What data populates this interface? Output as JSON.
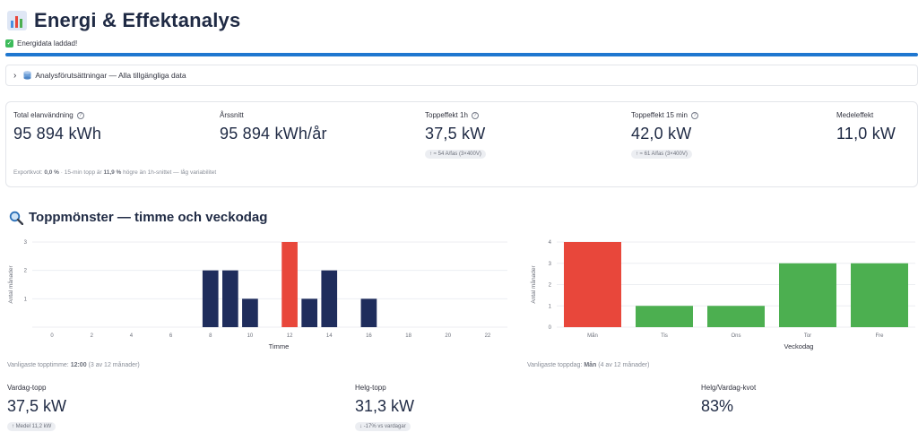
{
  "app": {
    "title": "Energi & Effektanalys",
    "icon": "bar-chart-icon"
  },
  "toast": {
    "text": "Energidata laddad!",
    "icon": "check-icon"
  },
  "progress": {
    "value": 1.0,
    "color": "#1f77d0"
  },
  "expander": {
    "label": "Analysförutsättningar — Alla tillgängliga data",
    "icon": "database-icon",
    "state": "collapsed"
  },
  "metrics": {
    "items": [
      {
        "label": "Total elanvändning",
        "value": "95 894 kWh",
        "help": true,
        "delta": ""
      },
      {
        "label": "Årssnitt",
        "value": "95 894 kWh/år",
        "help": false,
        "delta": ""
      },
      {
        "label": "Toppeffekt 1h",
        "value": "37,5 kW",
        "help": true,
        "delta": "↑ ≈ 54 A/fas (3×400V)"
      },
      {
        "label": "Toppeffekt 15 min",
        "value": "42,0 kW",
        "help": true,
        "delta": "↑ ≈ 61 A/fas (3×400V)"
      },
      {
        "label": "Medeleffekt",
        "value": "11,0 kW",
        "help": false,
        "delta": ""
      }
    ],
    "caption_pre": "Exportkvot: ",
    "caption_exp": "0,0 %",
    "caption_mid": " · 15-min topp är ",
    "caption_pct": "11,9 %",
    "caption_post": " högre än 1h-snittet — låg variabilitet"
  },
  "section": {
    "title": "Toppmönster — timme och veckodag",
    "icon": "magnifier-icon"
  },
  "chart_data": [
    {
      "type": "bar",
      "xlabel": "Timme",
      "ylabel": "Antal månader",
      "xlim": [
        -1,
        23
      ],
      "ylim": [
        0,
        3
      ],
      "x_ticks": [
        0,
        2,
        4,
        6,
        8,
        10,
        12,
        14,
        16,
        18,
        20,
        22
      ],
      "y_ticks": [
        1,
        2,
        3
      ],
      "grid": true,
      "x": [
        8,
        9,
        10,
        12,
        13,
        14,
        16
      ],
      "values": [
        2,
        2,
        1,
        3,
        1,
        2,
        1
      ],
      "highlight": 12,
      "colors": {
        "default": "#1f2d5c",
        "highlight": "#e8473b"
      }
    },
    {
      "type": "bar",
      "xlabel": "Veckodag",
      "ylabel": "Antal månader",
      "ylim": [
        0,
        4
      ],
      "y_ticks": [
        0,
        1,
        2,
        3,
        4
      ],
      "grid": true,
      "categories": [
        "Mån",
        "Tis",
        "Ons",
        "Tor",
        "Fre"
      ],
      "values": [
        4,
        1,
        1,
        3,
        3
      ],
      "colors": [
        "#e8473b",
        "#4caf50",
        "#4caf50",
        "#4caf50",
        "#4caf50"
      ]
    }
  ],
  "notes": {
    "hour_pre": "Vanligaste topptimme: ",
    "hour_val": "12:00",
    "hour_post": " (3 av 12 månader)",
    "day_pre": "Vanligaste toppdag: ",
    "day_val": "Mån",
    "day_post": " (4 av 12 månader)"
  },
  "bottom": {
    "weekday": {
      "label": "Vardag-topp",
      "value": "37,5 kW",
      "delta": "↑ Medel 11,2 kW"
    },
    "weekend": {
      "label": "Helg-topp",
      "value": "31,3 kW",
      "delta": "↓ -17% vs vardagar"
    },
    "ratio": {
      "label": "Helg/Vardag-kvot",
      "value": "83%"
    }
  }
}
